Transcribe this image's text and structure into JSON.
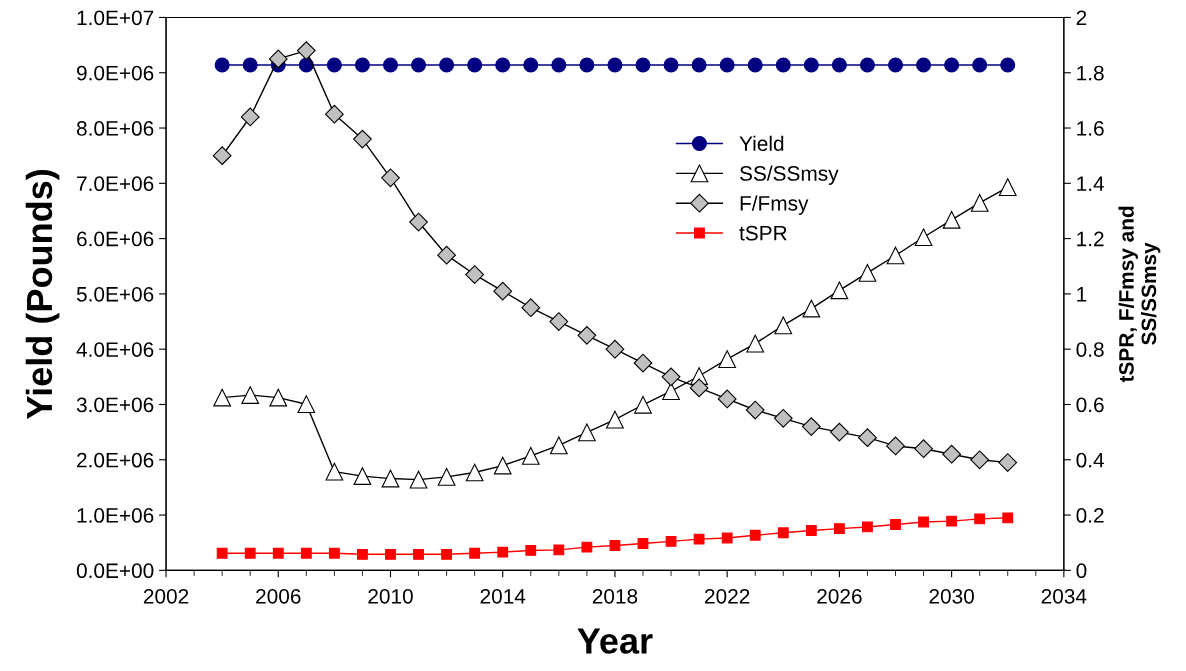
{
  "chart_data": {
    "type": "line",
    "xlabel": "Year",
    "ylabel": "Yield (Pounds)",
    "y2label": "tSPR, F/Fmsy and\nSS/SSmsy",
    "x": [
      2004,
      2005,
      2006,
      2007,
      2008,
      2009,
      2010,
      2011,
      2012,
      2013,
      2014,
      2015,
      2016,
      2017,
      2018,
      2019,
      2020,
      2021,
      2022,
      2023,
      2024,
      2025,
      2026,
      2027,
      2028,
      2029,
      2030,
      2031,
      2032
    ],
    "xlim": [
      2002,
      2034
    ],
    "xticks": [
      2002,
      2006,
      2010,
      2014,
      2018,
      2022,
      2026,
      2030,
      2034
    ],
    "ylim": [
      0,
      10000000
    ],
    "yticks": [
      {
        "value": 0,
        "label": "0.0E+00"
      },
      {
        "value": 1000000,
        "label": "1.0E+06"
      },
      {
        "value": 2000000,
        "label": "2.0E+06"
      },
      {
        "value": 3000000,
        "label": "3.0E+06"
      },
      {
        "value": 4000000,
        "label": "4.0E+06"
      },
      {
        "value": 5000000,
        "label": "5.0E+06"
      },
      {
        "value": 6000000,
        "label": "6.0E+06"
      },
      {
        "value": 7000000,
        "label": "7.0E+06"
      },
      {
        "value": 8000000,
        "label": "8.0E+06"
      },
      {
        "value": 9000000,
        "label": "9.0E+06"
      },
      {
        "value": 10000000,
        "label": "1.0E+07"
      }
    ],
    "y2lim": [
      0,
      2
    ],
    "y2ticks": [
      0,
      0.2,
      0.4,
      0.6,
      0.8,
      1,
      1.2,
      1.4,
      1.6,
      1.8,
      2
    ],
    "grid": false,
    "legend": "top right",
    "series": [
      {
        "name": "Yield",
        "color": "#000080",
        "marker": "circle",
        "values": [
          9140000,
          9140000,
          9140000,
          9140000,
          9140000,
          9140000,
          9140000,
          9140000,
          9140000,
          9140000,
          9140000,
          9140000,
          9140000,
          9140000,
          9140000,
          9140000,
          9140000,
          9140000,
          9140000,
          9140000,
          9140000,
          9140000,
          9140000,
          9140000,
          9140000,
          9140000,
          9140000,
          9140000,
          9140000
        ]
      },
      {
        "name": "SS/SSmsy",
        "color": "#ffffff",
        "marker": "triangle",
        "axis": "y2",
        "values": [
          0.625,
          0.634,
          0.625,
          0.601,
          0.357,
          0.341,
          0.332,
          0.328,
          0.338,
          0.354,
          0.379,
          0.414,
          0.452,
          0.499,
          0.545,
          0.599,
          0.648,
          0.703,
          0.764,
          0.82,
          0.886,
          0.947,
          1.013,
          1.076,
          1.139,
          1.205,
          1.268,
          1.329,
          1.386
        ]
      },
      {
        "name": "F/Fmsy",
        "color": "#c0c0c0",
        "marker": "diamond",
        "axis": "y2",
        "values": [
          1.5,
          1.64,
          1.85,
          1.88,
          1.65,
          1.56,
          1.42,
          1.26,
          1.14,
          1.07,
          1.01,
          0.95,
          0.9,
          0.85,
          0.8,
          0.75,
          0.7,
          0.66,
          0.62,
          0.58,
          0.55,
          0.52,
          0.5,
          0.48,
          0.45,
          0.44,
          0.42,
          0.4,
          0.39
        ]
      },
      {
        "name": "tSPR",
        "color": "#ff0000",
        "marker": "square",
        "axis": "y2",
        "values": [
          0.062,
          0.062,
          0.062,
          0.062,
          0.062,
          0.058,
          0.058,
          0.058,
          0.058,
          0.062,
          0.066,
          0.072,
          0.074,
          0.084,
          0.09,
          0.097,
          0.105,
          0.113,
          0.117,
          0.127,
          0.136,
          0.144,
          0.151,
          0.157,
          0.166,
          0.175,
          0.178,
          0.186,
          0.19
        ]
      }
    ]
  }
}
